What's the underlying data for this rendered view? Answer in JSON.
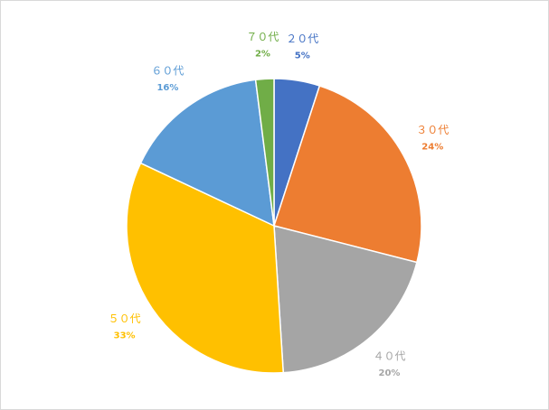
{
  "chart_data": {
    "type": "pie",
    "categories": [
      "２０代",
      "３０代",
      "４０代",
      "５０代",
      "６０代",
      "７０代"
    ],
    "values": [
      5,
      24,
      20,
      33,
      16,
      2
    ],
    "value_labels": [
      "5%",
      "24%",
      "20%",
      "33%",
      "16%",
      "2%"
    ],
    "colors": [
      "#4472c4",
      "#ed7d31",
      "#a5a5a5",
      "#ffc000",
      "#5b9bd5",
      "#70ad47"
    ]
  }
}
